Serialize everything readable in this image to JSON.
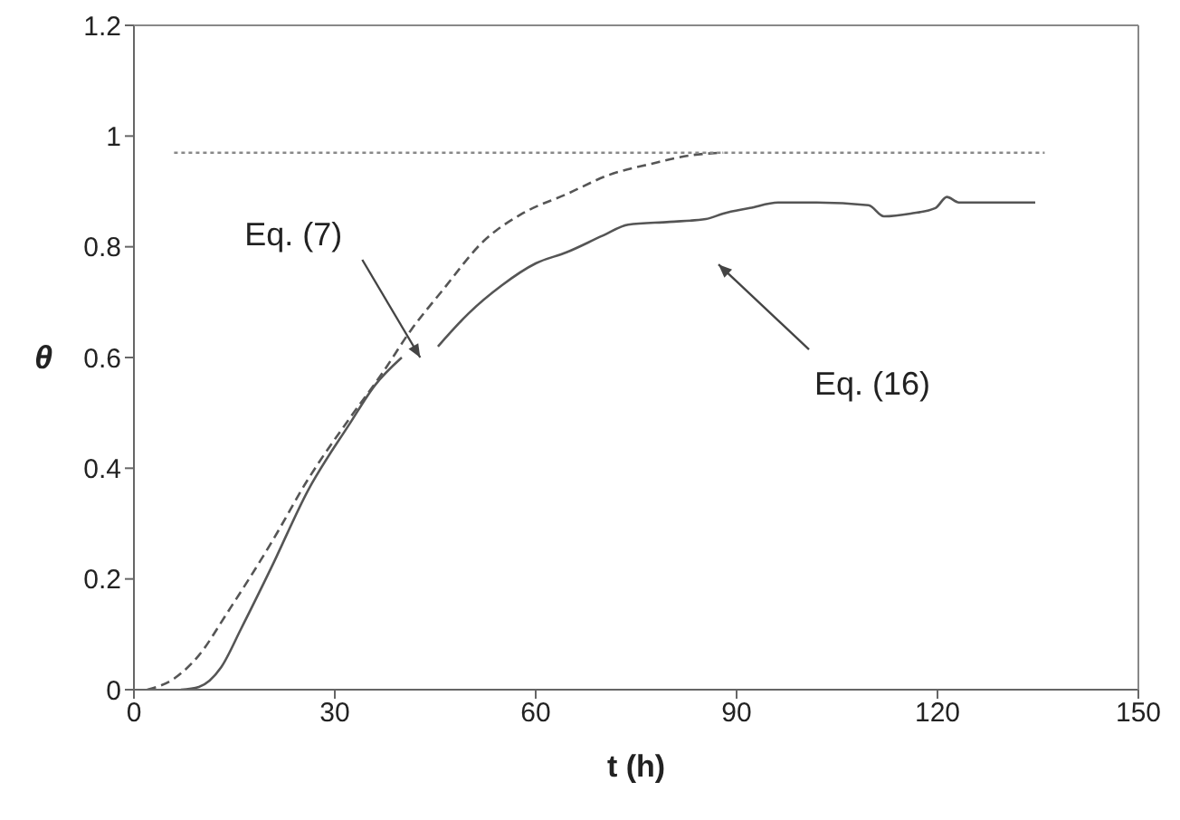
{
  "chart_data": {
    "type": "line",
    "xlabel": "t (h)",
    "ylabel": "θ",
    "xlim": [
      0,
      150
    ],
    "xticks": [
      0,
      30,
      60,
      90,
      120,
      150
    ],
    "ylim": [
      0,
      1.2
    ],
    "yticks": [
      0,
      0.2,
      0.4,
      0.6,
      0.8,
      1,
      1.2
    ],
    "series": [
      {
        "color": "#555555",
        "line_style": "dashed",
        "x": [
          2,
          6,
          9.7,
          14,
          20.5,
          26,
          32.2,
          37,
          41.4,
          46,
          52.2,
          58,
          64.6,
          71,
          77.3,
          83,
          88
        ],
        "values": [
          0,
          0.02,
          0.062,
          0.14,
          0.265,
          0.38,
          0.49,
          0.57,
          0.65,
          0.72,
          0.81,
          0.86,
          0.895,
          0.93,
          0.95,
          0.965,
          0.97
        ]
      },
      {
        "color": "#555555",
        "line_style": "solid",
        "x": [
          7,
          9.7,
          13,
          16,
          20.5,
          26,
          32.2,
          36,
          40,
          43,
          45.4,
          50,
          54.9,
          60,
          64.6,
          70,
          73.8,
          80,
          85.4,
          88,
          92,
          96.2,
          102,
          109.7,
          112,
          116,
          119.7,
          121.4,
          123.2,
          128,
          134.6
        ],
        "values": [
          0,
          0.005,
          0.04,
          0.11,
          0.22,
          0.36,
          0.48,
          0.55,
          0.6,
          null,
          0.62,
          0.68,
          0.73,
          0.77,
          0.79,
          0.82,
          0.84,
          0.845,
          0.85,
          0.86,
          0.87,
          0.88,
          0.88,
          0.875,
          0.855,
          0.86,
          0.87,
          0.89,
          0.88,
          0.88,
          0.88
        ]
      },
      {
        "color": "#888888",
        "line_style": "dotted",
        "x": [
          6,
          136
        ],
        "values": [
          0.97,
          0.97
        ]
      }
    ],
    "annotations": [
      "Eq. (7)",
      "Eq. (16)"
    ]
  }
}
